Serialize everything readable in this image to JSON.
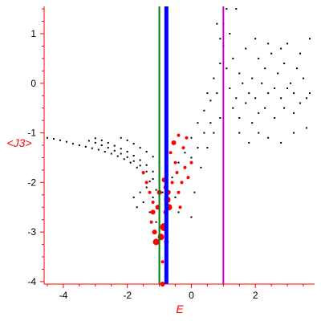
{
  "chart_data": {
    "type": "scatter",
    "xlabel": "E",
    "ylabel": "<J3>",
    "xlim": [
      -4.6,
      3.85
    ],
    "ylim": [
      -4.05,
      1.55
    ],
    "x_ticks": [
      -4,
      -2,
      0,
      2
    ],
    "x_tick_labels": [
      "-4",
      "-2",
      "0",
      "2"
    ],
    "y_ticks": [
      1,
      0,
      -1,
      -2,
      -3,
      -4
    ],
    "y_tick_labels": [
      "1",
      "0",
      "-1",
      "-2",
      "-3",
      "-4"
    ],
    "grid": false,
    "colors": {
      "axes": "#ff0000",
      "black_points": "#000000",
      "red_points": "#ff0000",
      "line_green": "#008000",
      "line_blue": "#0000ff",
      "line_magenta": "#cc00cc"
    },
    "vertical_lines": [
      {
        "x": -1.0,
        "color": "#008000",
        "width": "thin"
      },
      {
        "x": -0.78,
        "color": "#0000ff",
        "width": "thick"
      },
      {
        "x": 1.0,
        "color": "#cc00cc",
        "width": "thin"
      }
    ],
    "series": [
      {
        "marker": "small black dots",
        "color": "#000000",
        "points": [
          [
            -4.5,
            -1.1
          ],
          [
            -4.3,
            -1.12
          ],
          [
            -4.1,
            -1.15
          ],
          [
            -3.9,
            -1.18
          ],
          [
            -3.7,
            -1.22
          ],
          [
            -3.5,
            -1.25
          ],
          [
            -3.3,
            -1.28
          ],
          [
            -3.1,
            -1.31
          ],
          [
            -2.9,
            -1.34
          ],
          [
            -2.7,
            -1.38
          ],
          [
            -2.5,
            -1.42
          ],
          [
            -2.3,
            -1.47
          ],
          [
            -2.1,
            -1.53
          ],
          [
            -1.9,
            -1.6
          ],
          [
            -1.7,
            -1.7
          ],
          [
            -1.5,
            -1.82
          ],
          [
            -1.3,
            -1.98
          ],
          [
            -1.1,
            -2.15
          ],
          [
            -3.2,
            -1.16
          ],
          [
            -3.0,
            -1.2
          ],
          [
            -2.8,
            -1.25
          ],
          [
            -2.6,
            -1.3
          ],
          [
            -2.4,
            -1.36
          ],
          [
            -2.2,
            -1.42
          ],
          [
            -2.0,
            -1.49
          ],
          [
            -1.8,
            -1.57
          ],
          [
            -1.6,
            -1.66
          ],
          [
            -1.4,
            -1.78
          ],
          [
            -1.2,
            -1.93
          ],
          [
            -3.0,
            -1.11
          ],
          [
            -2.8,
            -1.15
          ],
          [
            -2.6,
            -1.2
          ],
          [
            -2.4,
            -1.26
          ],
          [
            -2.2,
            -1.32
          ],
          [
            -2.0,
            -1.38
          ],
          [
            -1.8,
            -1.46
          ],
          [
            -1.6,
            -1.55
          ],
          [
            -1.4,
            -1.65
          ],
          [
            -1.2,
            -1.78
          ],
          [
            -2.2,
            -1.1
          ],
          [
            -2.0,
            -1.15
          ],
          [
            -1.8,
            -1.22
          ],
          [
            -1.6,
            -1.3
          ],
          [
            -1.4,
            -1.38
          ],
          [
            -1.2,
            -1.48
          ],
          [
            -1.0,
            -1.6
          ],
          [
            -1.8,
            -2.3
          ],
          [
            -1.7,
            -2.5
          ],
          [
            -1.6,
            -2.2
          ],
          [
            -1.5,
            -2.4
          ],
          [
            -1.4,
            -2.1
          ],
          [
            -1.3,
            -2.6
          ],
          [
            -1.2,
            -2.3
          ],
          [
            -1.1,
            -2.8
          ],
          [
            -1.0,
            -2.5
          ],
          [
            -0.9,
            -2.2
          ],
          [
            -0.6,
            -1.9
          ],
          [
            -0.4,
            -1.6
          ],
          [
            -0.2,
            -1.4
          ],
          [
            0.0,
            -1.1
          ],
          [
            0.2,
            -0.8
          ],
          [
            0.4,
            -0.55
          ],
          [
            0.6,
            -0.35
          ],
          [
            0.8,
            -0.2
          ],
          [
            -0.5,
            -2.3
          ],
          [
            -0.4,
            -2.6
          ],
          [
            -0.3,
            -2.0
          ],
          [
            -0.2,
            -1.7
          ],
          [
            0.0,
            -1.5
          ],
          [
            0.2,
            -1.3
          ],
          [
            0.4,
            -1.0
          ],
          [
            0.6,
            -0.8
          ],
          [
            0.0,
            -2.7
          ],
          [
            0.1,
            -2.2
          ],
          [
            0.3,
            -1.7
          ],
          [
            0.5,
            -1.3
          ],
          [
            0.7,
            -1.0
          ],
          [
            0.9,
            -0.7
          ],
          [
            0.5,
            -0.2
          ],
          [
            0.7,
            0.1
          ],
          [
            0.9,
            0.4
          ],
          [
            1.0,
            0.75
          ],
          [
            1.0,
            1.2
          ],
          [
            1.1,
            1.5
          ],
          [
            0.9,
            0.9
          ],
          [
            0.8,
            1.2
          ],
          [
            1.1,
            0.3
          ],
          [
            1.3,
            0.5
          ],
          [
            1.5,
            0.2
          ],
          [
            1.7,
            0.7
          ],
          [
            1.9,
            0.1
          ],
          [
            2.1,
            0.5
          ],
          [
            2.3,
            0.3
          ],
          [
            2.5,
            0.6
          ],
          [
            2.7,
            0.2
          ],
          [
            2.9,
            0.4
          ],
          [
            3.1,
            0.0
          ],
          [
            3.3,
            0.3
          ],
          [
            3.5,
            0.1
          ],
          [
            3.7,
            -0.2
          ],
          [
            1.2,
            -0.1
          ],
          [
            1.4,
            -0.3
          ],
          [
            1.6,
            0.0
          ],
          [
            1.8,
            -0.2
          ],
          [
            2.0,
            -0.3
          ],
          [
            2.2,
            0.0
          ],
          [
            2.4,
            -0.2
          ],
          [
            2.6,
            -0.1
          ],
          [
            2.8,
            -0.3
          ],
          [
            3.0,
            -0.1
          ],
          [
            3.2,
            -0.2
          ],
          [
            3.4,
            -0.4
          ],
          [
            3.6,
            -0.3
          ],
          [
            1.3,
            -0.5
          ],
          [
            1.5,
            -0.7
          ],
          [
            1.7,
            -0.4
          ],
          [
            1.9,
            -0.8
          ],
          [
            2.1,
            -0.6
          ],
          [
            2.3,
            -0.5
          ],
          [
            2.6,
            -0.7
          ],
          [
            2.9,
            -0.5
          ],
          [
            3.2,
            -0.6
          ],
          [
            1.5,
            -1.0
          ],
          [
            1.8,
            -1.2
          ],
          [
            2.1,
            -1.0
          ],
          [
            2.4,
            -1.1
          ],
          [
            2.8,
            -1.2
          ],
          [
            3.2,
            -1.0
          ],
          [
            3.6,
            -0.9
          ],
          [
            2.0,
            0.9
          ],
          [
            2.4,
            0.8
          ],
          [
            2.8,
            0.7
          ],
          [
            3.0,
            0.8
          ],
          [
            3.4,
            0.6
          ],
          [
            3.7,
            0.9
          ],
          [
            1.4,
            1.5
          ],
          [
            1.2,
            1.0
          ]
        ]
      },
      {
        "marker": "red filled circles (sized by weight)",
        "color": "#ff0000",
        "points": [
          [
            -1.5,
            -1.8,
            2
          ],
          [
            -1.4,
            -2.0,
            2
          ],
          [
            -1.3,
            -2.2,
            2
          ],
          [
            -1.2,
            -2.4,
            2
          ],
          [
            -1.2,
            -2.6,
            3
          ],
          [
            -1.25,
            -2.8,
            2
          ],
          [
            -1.15,
            -3.0,
            3
          ],
          [
            -1.1,
            -3.2,
            4
          ],
          [
            -0.95,
            -3.1,
            4
          ],
          [
            -0.85,
            -2.9,
            5
          ],
          [
            -0.8,
            -2.6,
            3
          ],
          [
            -0.75,
            -2.35,
            4
          ],
          [
            -0.8,
            -2.1,
            3
          ],
          [
            -0.85,
            -1.95,
            3
          ],
          [
            -0.7,
            -2.5,
            4
          ],
          [
            -0.72,
            -2.2,
            3
          ],
          [
            -0.78,
            -3.2,
            3
          ],
          [
            -0.9,
            -3.6,
            2
          ],
          [
            -0.9,
            -4.05,
            3
          ],
          [
            -1.05,
            -2.5,
            3
          ],
          [
            -1.0,
            -2.2,
            3
          ],
          [
            -0.6,
            -2.0,
            2
          ],
          [
            -0.5,
            -1.6,
            2
          ],
          [
            -0.4,
            -2.2,
            2
          ],
          [
            -0.35,
            -2.5,
            2
          ],
          [
            -0.3,
            -2.0,
            2
          ],
          [
            -0.2,
            -1.7,
            2
          ],
          [
            -0.1,
            -1.9,
            2
          ],
          [
            0.0,
            -1.6,
            2
          ],
          [
            -0.45,
            -1.8,
            2
          ],
          [
            -0.25,
            -1.3,
            2
          ],
          [
            -0.15,
            -1.1,
            2
          ],
          [
            -0.55,
            -1.2,
            3
          ],
          [
            -0.65,
            -1.4,
            2
          ],
          [
            -0.4,
            -1.05,
            2
          ]
        ]
      }
    ]
  }
}
